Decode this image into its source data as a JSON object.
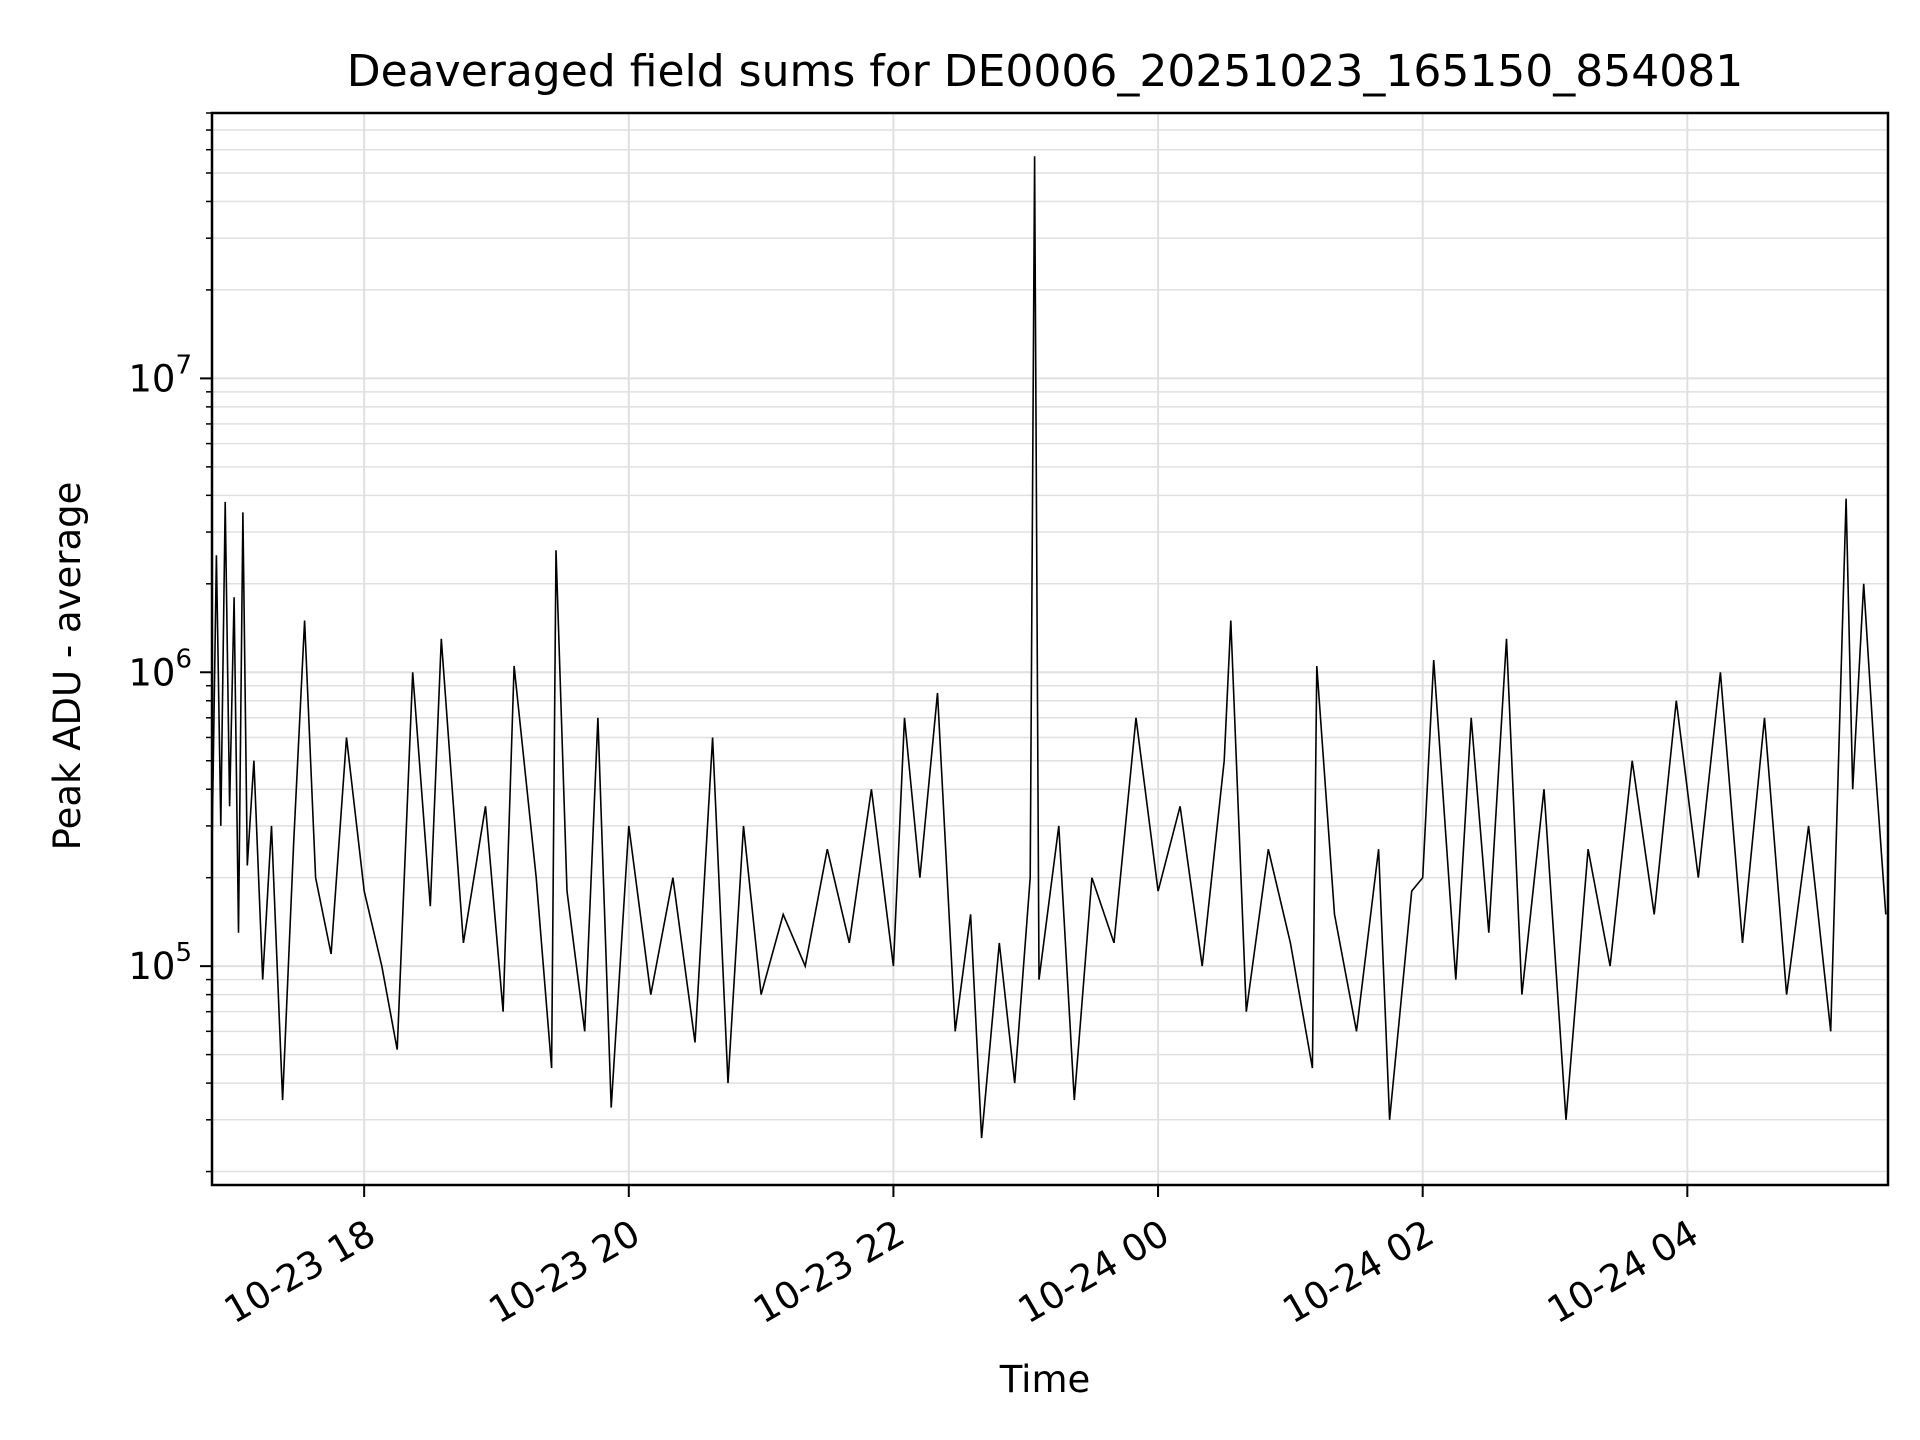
{
  "chart_data": {
    "type": "line",
    "title": "Deaveraged field sums for DE0006_20251023_165150_854081",
    "xlabel": "Time",
    "ylabel": "Peak ADU - average",
    "y_scale": "log",
    "ylim": [
      18000,
      80000000
    ],
    "xlim": [
      "2025-10-23 16:51",
      "2025-10-24 05:31"
    ],
    "grid": true,
    "line_color": "#000000",
    "grid_color": "#e0e0e0",
    "x_ticks": [
      {
        "value": "2025-10-23 18:00",
        "label": "10-23 18"
      },
      {
        "value": "2025-10-23 20:00",
        "label": "10-23 20"
      },
      {
        "value": "2025-10-23 22:00",
        "label": "10-23 22"
      },
      {
        "value": "2025-10-24 00:00",
        "label": "10-24 00"
      },
      {
        "value": "2025-10-24 02:00",
        "label": "10-24 02"
      },
      {
        "value": "2025-10-24 04:00",
        "label": "10-24 04"
      }
    ],
    "y_ticks": [
      {
        "value": 100000,
        "base": "10",
        "exp": "5"
      },
      {
        "value": 1000000,
        "base": "10",
        "exp": "6"
      },
      {
        "value": 10000000,
        "base": "10",
        "exp": "7"
      }
    ],
    "series": [
      {
        "points": [
          [
            "2025-10-23 16:51",
            250000
          ],
          [
            "2025-10-23 16:53",
            2500000
          ],
          [
            "2025-10-23 16:55",
            300000
          ],
          [
            "2025-10-23 16:57",
            3800000
          ],
          [
            "2025-10-23 16:59",
            350000
          ],
          [
            "2025-10-23 17:01",
            1800000
          ],
          [
            "2025-10-23 17:03",
            130000
          ],
          [
            "2025-10-23 17:05",
            3500000
          ],
          [
            "2025-10-23 17:07",
            220000
          ],
          [
            "2025-10-23 17:10",
            500000
          ],
          [
            "2025-10-23 17:14",
            90000
          ],
          [
            "2025-10-23 17:18",
            300000
          ],
          [
            "2025-10-23 17:23",
            35000
          ],
          [
            "2025-10-23 17:28",
            260000
          ],
          [
            "2025-10-23 17:33",
            1500000
          ],
          [
            "2025-10-23 17:38",
            200000
          ],
          [
            "2025-10-23 17:45",
            110000
          ],
          [
            "2025-10-23 17:52",
            600000
          ],
          [
            "2025-10-23 18:00",
            180000
          ],
          [
            "2025-10-23 18:08",
            100000
          ],
          [
            "2025-10-23 18:15",
            52000
          ],
          [
            "2025-10-23 18:22",
            1000000
          ],
          [
            "2025-10-23 18:30",
            160000
          ],
          [
            "2025-10-23 18:35",
            1300000
          ],
          [
            "2025-10-23 18:45",
            120000
          ],
          [
            "2025-10-23 18:55",
            350000
          ],
          [
            "2025-10-23 19:03",
            70000
          ],
          [
            "2025-10-23 19:08",
            1050000
          ],
          [
            "2025-10-23 19:18",
            200000
          ],
          [
            "2025-10-23 19:25",
            45000
          ],
          [
            "2025-10-23 19:27",
            2600000
          ],
          [
            "2025-10-23 19:32",
            180000
          ],
          [
            "2025-10-23 19:40",
            60000
          ],
          [
            "2025-10-23 19:46",
            700000
          ],
          [
            "2025-10-23 19:52",
            33000
          ],
          [
            "2025-10-23 20:00",
            300000
          ],
          [
            "2025-10-23 20:10",
            80000
          ],
          [
            "2025-10-23 20:20",
            200000
          ],
          [
            "2025-10-23 20:30",
            55000
          ],
          [
            "2025-10-23 20:38",
            600000
          ],
          [
            "2025-10-23 20:45",
            40000
          ],
          [
            "2025-10-23 20:52",
            300000
          ],
          [
            "2025-10-23 21:00",
            80000
          ],
          [
            "2025-10-23 21:10",
            150000
          ],
          [
            "2025-10-23 21:20",
            100000
          ],
          [
            "2025-10-23 21:30",
            250000
          ],
          [
            "2025-10-23 21:40",
            120000
          ],
          [
            "2025-10-23 21:50",
            400000
          ],
          [
            "2025-10-23 22:00",
            100000
          ],
          [
            "2025-10-23 22:05",
            700000
          ],
          [
            "2025-10-23 22:12",
            200000
          ],
          [
            "2025-10-23 22:20",
            850000
          ],
          [
            "2025-10-23 22:28",
            60000
          ],
          [
            "2025-10-23 22:35",
            150000
          ],
          [
            "2025-10-23 22:40",
            26000
          ],
          [
            "2025-10-23 22:48",
            120000
          ],
          [
            "2025-10-23 22:55",
            40000
          ],
          [
            "2025-10-23 23:02",
            200000
          ],
          [
            "2025-10-23 23:04",
            57000000
          ],
          [
            "2025-10-23 23:06",
            90000
          ],
          [
            "2025-10-23 23:15",
            300000
          ],
          [
            "2025-10-23 23:22",
            35000
          ],
          [
            "2025-10-23 23:30",
            200000
          ],
          [
            "2025-10-23 23:40",
            120000
          ],
          [
            "2025-10-23 23:50",
            700000
          ],
          [
            "2025-10-24 00:00",
            180000
          ],
          [
            "2025-10-24 00:10",
            350000
          ],
          [
            "2025-10-24 00:20",
            100000
          ],
          [
            "2025-10-24 00:30",
            500000
          ],
          [
            "2025-10-24 00:33",
            1500000
          ],
          [
            "2025-10-24 00:40",
            70000
          ],
          [
            "2025-10-24 00:50",
            250000
          ],
          [
            "2025-10-24 01:00",
            120000
          ],
          [
            "2025-10-24 01:10",
            45000
          ],
          [
            "2025-10-24 01:12",
            1050000
          ],
          [
            "2025-10-24 01:20",
            150000
          ],
          [
            "2025-10-24 01:30",
            60000
          ],
          [
            "2025-10-24 01:40",
            250000
          ],
          [
            "2025-10-24 01:45",
            30000
          ],
          [
            "2025-10-24 01:55",
            180000
          ],
          [
            "2025-10-24 02:00",
            200000
          ],
          [
            "2025-10-24 02:05",
            1100000
          ],
          [
            "2025-10-24 02:15",
            90000
          ],
          [
            "2025-10-24 02:22",
            700000
          ],
          [
            "2025-10-24 02:30",
            130000
          ],
          [
            "2025-10-24 02:38",
            1300000
          ],
          [
            "2025-10-24 02:45",
            80000
          ],
          [
            "2025-10-24 02:55",
            400000
          ],
          [
            "2025-10-24 03:05",
            30000
          ],
          [
            "2025-10-24 03:15",
            250000
          ],
          [
            "2025-10-24 03:25",
            100000
          ],
          [
            "2025-10-24 03:35",
            500000
          ],
          [
            "2025-10-24 03:45",
            150000
          ],
          [
            "2025-10-24 03:55",
            800000
          ],
          [
            "2025-10-24 04:05",
            200000
          ],
          [
            "2025-10-24 04:15",
            1000000
          ],
          [
            "2025-10-24 04:25",
            120000
          ],
          [
            "2025-10-24 04:35",
            700000
          ],
          [
            "2025-10-24 04:45",
            80000
          ],
          [
            "2025-10-24 04:55",
            300000
          ],
          [
            "2025-10-24 05:05",
            60000
          ],
          [
            "2025-10-24 05:12",
            3900000
          ],
          [
            "2025-10-24 05:15",
            400000
          ],
          [
            "2025-10-24 05:20",
            2000000
          ],
          [
            "2025-10-24 05:25",
            500000
          ],
          [
            "2025-10-24 05:30",
            150000
          ]
        ]
      }
    ]
  }
}
